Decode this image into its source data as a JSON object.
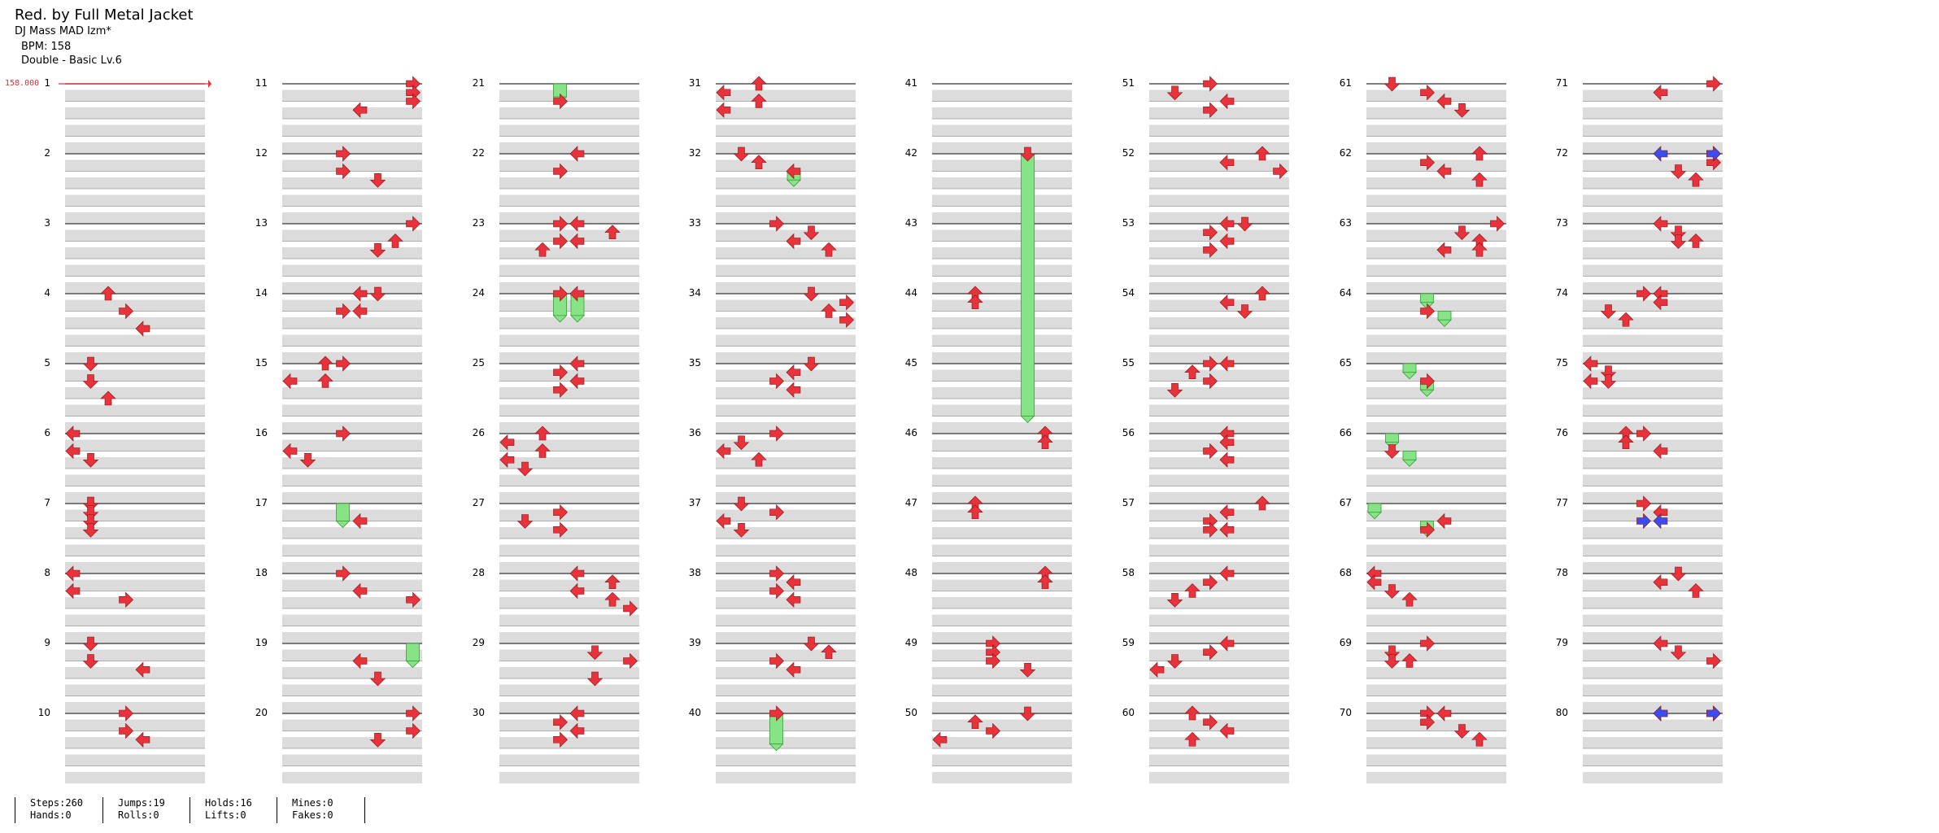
{
  "header": {
    "title": "Red. by Full Metal Jacket",
    "artist": "DJ Mass MAD Izm*",
    "bpm": "BPM: 158",
    "difficulty": "Double - Basic  Lv.6"
  },
  "bpm_marker": "158.000",
  "colors": {
    "arrow": "#e8323c",
    "hold": "#86e486",
    "mine_blue": "#3b4cf0",
    "band": "#dcdcdc"
  },
  "measure_numbers": [
    1,
    2,
    3,
    4,
    5,
    6,
    7,
    8,
    9,
    10,
    11,
    12,
    13,
    14,
    15,
    16,
    17,
    18,
    19,
    20,
    21,
    22,
    23,
    24,
    25,
    26,
    27,
    28,
    29,
    30,
    31,
    32,
    33,
    34,
    35,
    36,
    37,
    38,
    39,
    40,
    41,
    42,
    43,
    44,
    45,
    46,
    47,
    48,
    49,
    50,
    51,
    52,
    53,
    54,
    55,
    56,
    57,
    58,
    59,
    60,
    61,
    62,
    63,
    64,
    65,
    66,
    67,
    68,
    69,
    70,
    71,
    72,
    73,
    74,
    75,
    76,
    77,
    78,
    79,
    80
  ],
  "stats": {
    "steps": "Steps:260",
    "hands": "Hands:0",
    "jumps": "Jumps:19",
    "rolls": "Rolls:0",
    "holds": "Holds:16",
    "lifts": "Lifts:0",
    "mines": "Mines:0",
    "fakes": "Fakes:0"
  }
}
